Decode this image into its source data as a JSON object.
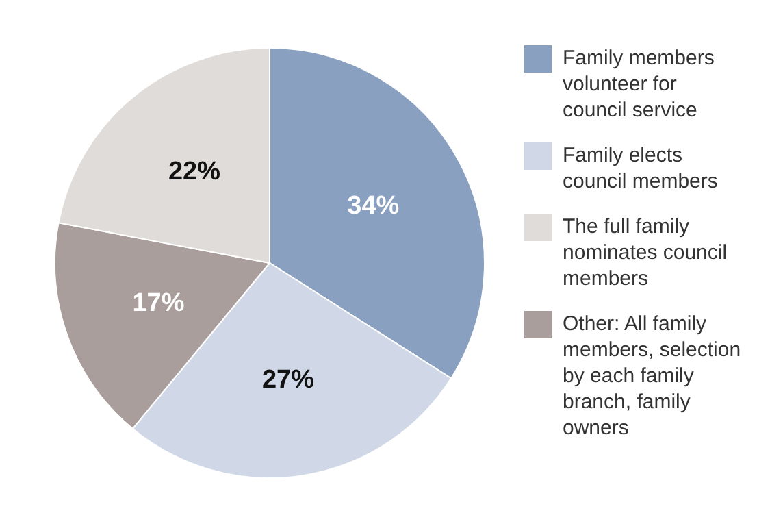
{
  "chart_data": {
    "type": "pie",
    "categories": [
      "Family members volunteer for council service",
      "Family elects council members",
      "Other: All family members, selection by each family branch, family owners",
      "The full family nominates council members"
    ],
    "values": [
      34,
      27,
      17,
      22
    ],
    "colors": [
      "#8aa0c0",
      "#d0d8e7",
      "#a99e9c",
      "#e0dcd9"
    ],
    "value_labels": [
      "34%",
      "27%",
      "17%",
      "22%"
    ],
    "legend": "right"
  }
}
